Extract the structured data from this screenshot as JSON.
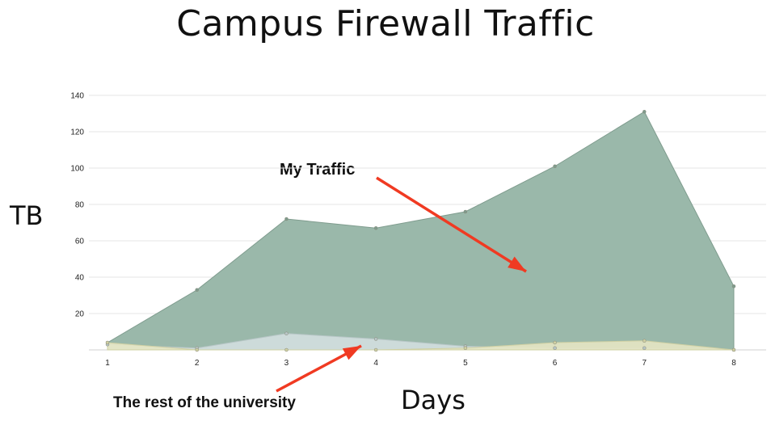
{
  "title": "Campus Firewall Traffic",
  "chart_data": {
    "type": "area",
    "title": "Campus Firewall Traffic",
    "xlabel": "Days",
    "ylabel": "TB",
    "x": [
      1,
      2,
      3,
      4,
      5,
      6,
      7,
      8
    ],
    "xlim": [
      1,
      8
    ],
    "ylim": [
      0,
      140
    ],
    "y_ticks": [
      20,
      40,
      60,
      80,
      100,
      120,
      140
    ],
    "grid": true,
    "stacked": false,
    "series": [
      {
        "values": [
          4,
          33,
          72,
          67,
          76,
          101,
          131,
          35
        ],
        "color": "#9ab8aa"
      },
      {
        "values": [
          3,
          1,
          9,
          6,
          2,
          1,
          1,
          0
        ],
        "color": "#d3dfdf"
      },
      {
        "values": [
          4,
          0,
          0,
          0,
          1,
          4,
          5,
          0
        ],
        "color": "#e5e6c3"
      }
    ],
    "annotations": [
      {
        "text": "My Traffic",
        "arrow_color": "#f03a22"
      },
      {
        "text": "The rest of the  university",
        "arrow_color": "#f03a22"
      }
    ]
  }
}
